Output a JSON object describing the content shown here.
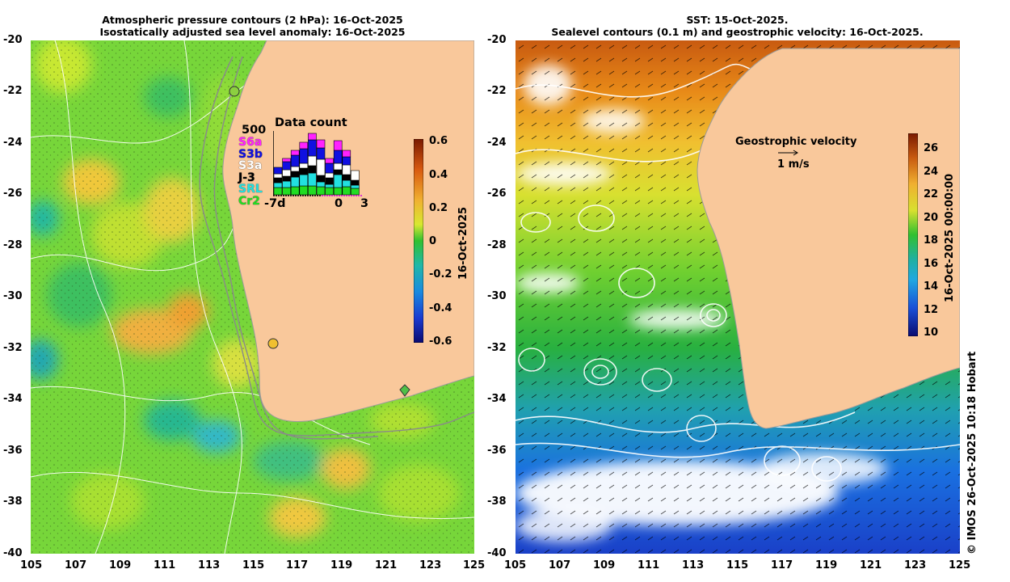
{
  "left_panel": {
    "title_line1": "Atmospheric pressure contours (2 hPa): 16-Oct-2025",
    "title_line2": "Isostatically adjusted sea level anomaly: 16-Oct-2025",
    "y_ticks": [
      "-20",
      "-22",
      "-24",
      "-26",
      "-28",
      "-30",
      "-32",
      "-34",
      "-36",
      "-38",
      "-40"
    ],
    "x_ticks": [
      "105",
      "107",
      "109",
      "111",
      "113",
      "115",
      "117",
      "119",
      "121",
      "123",
      "125"
    ],
    "colorbar": {
      "ticks": [
        "0.6",
        "0.4",
        "0.2",
        "0",
        "-0.2",
        "-0.4",
        "-0.6"
      ],
      "label": "16-Oct-2025"
    },
    "data_count": {
      "title": "Data count",
      "max_label": "500",
      "x_start": "-7d",
      "x_zero": "0",
      "x_end": "3",
      "missions": [
        {
          "name": "S6a",
          "color": "#ff22ff"
        },
        {
          "name": "S3b",
          "color": "#1010e0"
        },
        {
          "name": "S3a",
          "color": "#ffffff"
        },
        {
          "name": "J-3",
          "color": "#000000"
        },
        {
          "name": "SRL",
          "color": "#22e0e0"
        },
        {
          "name": "Cr2",
          "color": "#22dd22"
        }
      ]
    }
  },
  "right_panel": {
    "title_line1": "SST: 15-Oct-2025.",
    "title_line2": "Sealevel contours (0.1 m) and geostrophic velocity: 16-Oct-2025.",
    "y_ticks": [
      "-20",
      "-22",
      "-24",
      "-26",
      "-28",
      "-30",
      "-32",
      "-34",
      "-36",
      "-38",
      "-40"
    ],
    "x_ticks": [
      "105",
      "107",
      "109",
      "111",
      "113",
      "115",
      "117",
      "119",
      "121",
      "123",
      "125"
    ],
    "velocity_legend_title": "Geostrophic velocity",
    "velocity_legend_scale": "1 m/s",
    "colorbar": {
      "ticks": [
        "26",
        "24",
        "22",
        "20",
        "18",
        "16",
        "14",
        "12",
        "10"
      ],
      "label": "16-Oct-2025 00:00:00"
    }
  },
  "credit": "© IMOS 26-Oct-2025 10:18 Hobart",
  "colors": {
    "land": "#f9c89b",
    "ocean_left_base": "#7bd93a",
    "ocean_right_warm": "#d96a10",
    "ocean_right_cool": "#1a4fd8"
  }
}
